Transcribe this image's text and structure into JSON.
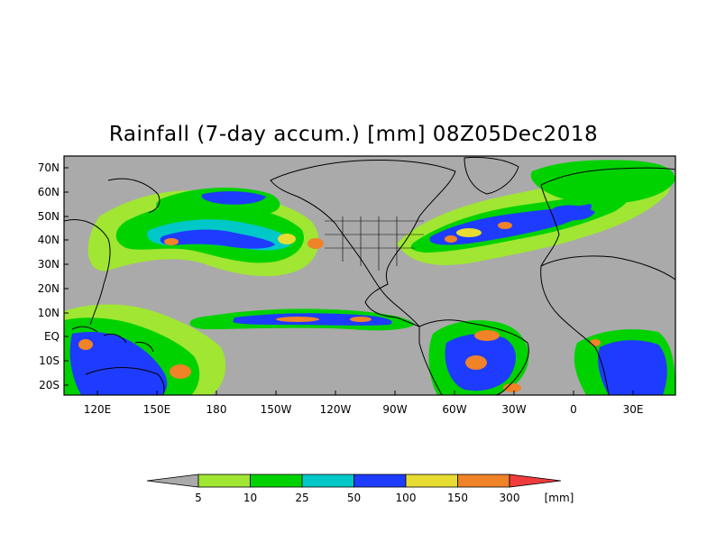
{
  "title": "Rainfall (7-day accum.) [mm] 08Z05Dec2018",
  "map": {
    "lon_labels": [
      "120E",
      "150E",
      "180",
      "150W",
      "120W",
      "90W",
      "60W",
      "30W",
      "0",
      "30E"
    ],
    "lat_labels": [
      "70N",
      "60N",
      "50N",
      "40N",
      "30N",
      "20N",
      "10N",
      "EQ",
      "10S",
      "20S"
    ],
    "background_color": "#aaaaaa",
    "coastline_color": "#000000"
  },
  "colorbar": {
    "unit_label": "[mm]",
    "tick_labels": [
      "5",
      "10",
      "25",
      "50",
      "100",
      "150",
      "300"
    ],
    "colors": [
      "#aaaaaa",
      "#a0e632",
      "#00d200",
      "#00c8c8",
      "#1e3cff",
      "#e6dc32",
      "#f08228",
      "#f03c3c"
    ]
  }
}
